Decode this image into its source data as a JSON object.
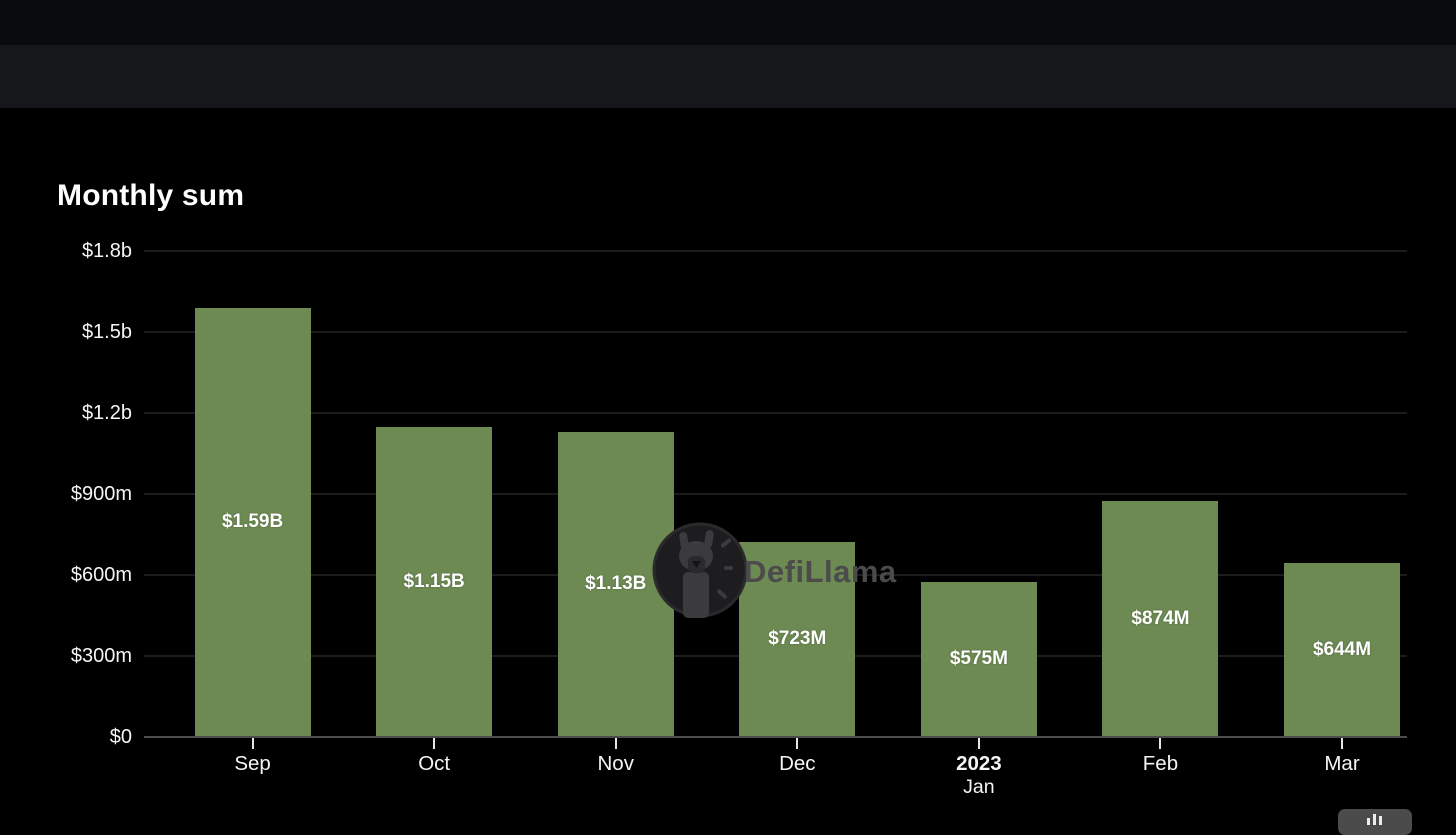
{
  "chart_data": {
    "type": "bar",
    "title": "Monthly sum",
    "categories": [
      "Sep",
      "Oct",
      "Nov",
      "Dec",
      "Jan",
      "Feb",
      "Mar"
    ],
    "x_tick_labels": [
      {
        "label": "Sep",
        "bold": false
      },
      {
        "label": "Oct",
        "bold": false
      },
      {
        "label": "Nov",
        "bold": false
      },
      {
        "label": "Dec",
        "bold": false
      },
      {
        "label": "2023",
        "sublabel": "Jan",
        "bold": true
      },
      {
        "label": "Feb",
        "bold": false
      },
      {
        "label": "Mar",
        "bold": false
      }
    ],
    "series": [
      {
        "name": "Monthly sum",
        "values_millions_usd": [
          1590,
          1150,
          1130,
          723,
          575,
          874,
          644
        ],
        "data_labels": [
          "$1.59B",
          "$1.15B",
          "$1.13B",
          "$723M",
          "$575M",
          "$874M",
          "$644M"
        ]
      }
    ],
    "y_ticks": [
      {
        "label": "$1.8b",
        "value_millions": 1800
      },
      {
        "label": "$1.5b",
        "value_millions": 1500
      },
      {
        "label": "$1.2b",
        "value_millions": 1200
      },
      {
        "label": "$900m",
        "value_millions": 900
      },
      {
        "label": "$600m",
        "value_millions": 600
      },
      {
        "label": "$300m",
        "value_millions": 300
      },
      {
        "label": "$0",
        "value_millions": 0
      }
    ],
    "ylim_millions": [
      0,
      1800
    ],
    "grid": true,
    "legend": false,
    "bar_color": "#6d8a53",
    "label_color": "#ffffff"
  },
  "watermark": {
    "label": "DefiLlama",
    "icon": "llama-icon"
  },
  "toolbar": {
    "button_icon": "mini-bar-chart-icon"
  },
  "colors": {
    "background": "#000000",
    "top_navbar": "#0a0b0e",
    "sub_navbar": "#16171b",
    "grid_line": "#1c1c1f",
    "axis_line": "#4d4d4d",
    "tick": "#e6e6e6",
    "bar": "#6d8a53",
    "watermark_text": "#4b4b4b",
    "toolbox_button": "#4b4b4b"
  }
}
